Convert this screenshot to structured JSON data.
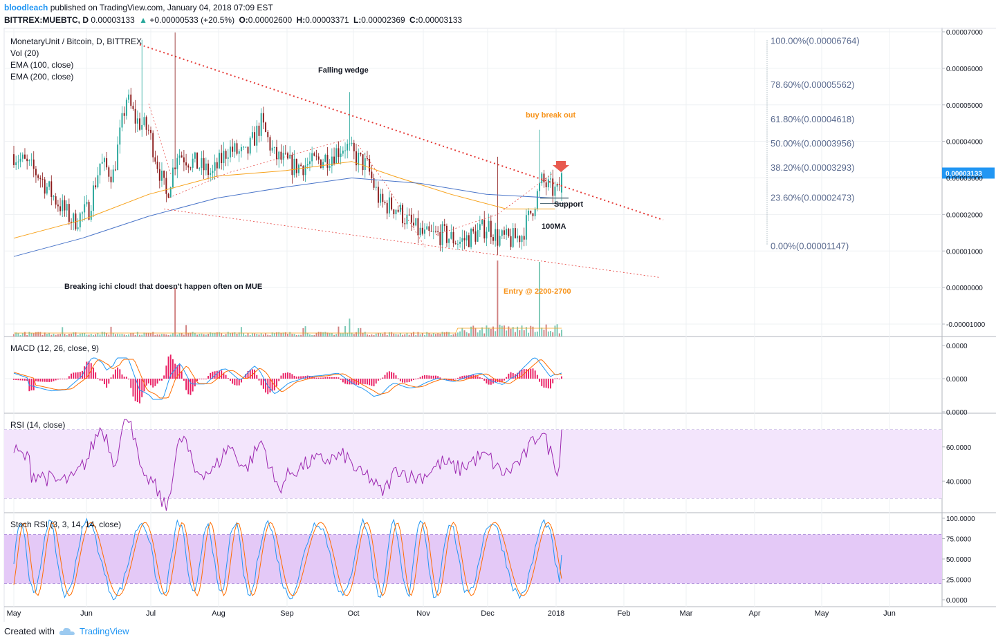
{
  "header": {
    "user": "bloodleach",
    "published": "published on TradingView.com, January 04, 2018 07:09 EST",
    "symbol": "BITTREX:MUEBTC, D",
    "last": "0.00003133",
    "change_arrow": "▲",
    "change": "+0.00000533 (+20.5%)",
    "o_label": "O:",
    "o": "0.00002600",
    "h_label": "H:",
    "h": "0.00003371",
    "l_label": "L:",
    "l": "0.00002369",
    "c_label": "C:",
    "c": "0.00003133"
  },
  "legend": {
    "title": "MonetaryUnit / Bitcoin, D, BITTREX",
    "vol": "Vol (20)",
    "ema100": "EMA (100, close)",
    "ema200": "EMA (200, close)",
    "macd": "MACD (12, 26, close, 9)",
    "rsi": "RSI (14, close)",
    "stoch": "Stoch RSI (3, 3, 14, 14, close)"
  },
  "annotations": {
    "falling_wedge": "Falling wedge",
    "buy_break_out": "buy break out",
    "support": "Support",
    "ma100": "100MA",
    "ichi": "Breaking ichi cloud! that doesn't happen often on MUE",
    "entry": "Entry @ 2200-2700"
  },
  "fib": [
    {
      "label": "100.00%(0.00006764)",
      "value": 6.764e-05
    },
    {
      "label": "78.60%(0.00005562)",
      "value": 5.562e-05
    },
    {
      "label": "61.80%(0.00004618)",
      "value": 4.618e-05
    },
    {
      "label": "50.00%(0.00003956)",
      "value": 3.956e-05
    },
    {
      "label": "38.20%(0.00003293)",
      "value": 3.293e-05
    },
    {
      "label": "23.60%(0.00002473)",
      "value": 2.473e-05
    },
    {
      "label": "0.00%(0.00001147)",
      "value": 1.147e-05
    }
  ],
  "price_axis": {
    "ticks": [
      "0.00007000",
      "0.00006000",
      "0.00005000",
      "0.00004000",
      "0.00003000",
      "0.00002000",
      "0.00001000",
      "0.00000000",
      "-0.00001000"
    ],
    "last_label": "0.00003133"
  },
  "macd_axis": [
    "0.0000",
    "0.0000",
    "0.0000"
  ],
  "rsi_axis": [
    "60.0000",
    "40.0000"
  ],
  "stoch_axis": [
    "100.0000",
    "75.0000",
    "50.0000",
    "25.0000",
    "0.0000"
  ],
  "time_axis": [
    "May",
    "Jun",
    "Jul",
    "Aug",
    "Sep",
    "Oct",
    "Nov",
    "Dec",
    "2018",
    "Feb",
    "Mar",
    "Apr",
    "May",
    "Jun"
  ],
  "colors": {
    "up": "#26a69a",
    "down": "#8b1a1a",
    "ema100": "#f7a21b",
    "ema200": "#4a75c9",
    "trend": "#e53935",
    "macd_line": "#2196f3",
    "signal": "#ff6d00",
    "hist": "#e91e63",
    "rsi_line": "#9c27b0",
    "rsi_band": "#f3e5fc",
    "stoch_band": "#e4c9f7",
    "fib_text": "#5b6b8f",
    "orange_text": "#f7931a",
    "last_bg": "#2196f3"
  },
  "chart_data": {
    "type": "candlestick",
    "title": "MonetaryUnit / Bitcoin, D, BITTREX",
    "x_range": [
      "2017-05-01",
      "2018-06-30"
    ],
    "y_range": [
      -1.2e-05,
      7e-05
    ],
    "series": [
      {
        "name": "EMA (100, close)",
        "points": [
          [
            "2017-05-01",
            1.35e-05
          ],
          [
            "2017-06-01",
            1.85e-05
          ],
          [
            "2017-07-01",
            2.55e-05
          ],
          [
            "2017-08-01",
            3.05e-05
          ],
          [
            "2017-09-01",
            3.2e-05
          ],
          [
            "2017-10-01",
            3.45e-05
          ],
          [
            "2017-10-20",
            3.05e-05
          ],
          [
            "2017-11-15",
            2.55e-05
          ],
          [
            "2017-12-10",
            2.15e-05
          ],
          [
            "2018-01-01",
            2.15e-05
          ]
        ]
      },
      {
        "name": "EMA (200, close)",
        "points": [
          [
            "2017-05-01",
            8.5e-06
          ],
          [
            "2017-06-01",
            1.35e-05
          ],
          [
            "2017-07-01",
            1.95e-05
          ],
          [
            "2017-08-01",
            2.45e-05
          ],
          [
            "2017-09-01",
            2.75e-05
          ],
          [
            "2017-10-01",
            3e-05
          ],
          [
            "2017-11-01",
            2.85e-05
          ],
          [
            "2017-12-01",
            2.55e-05
          ],
          [
            "2018-01-01",
            2.45e-05
          ]
        ]
      }
    ],
    "trendlines": [
      {
        "from": [
          "2017-06-27",
          6.65e-05
        ],
        "to": [
          "2018-02-19",
          1.85e-05
        ]
      },
      {
        "from": [
          "2017-07-08",
          2.15e-05
        ],
        "to": [
          "2018-02-17",
          2.8e-06
        ]
      }
    ],
    "rsi_last": 70,
    "stoch_last": 55
  }
}
